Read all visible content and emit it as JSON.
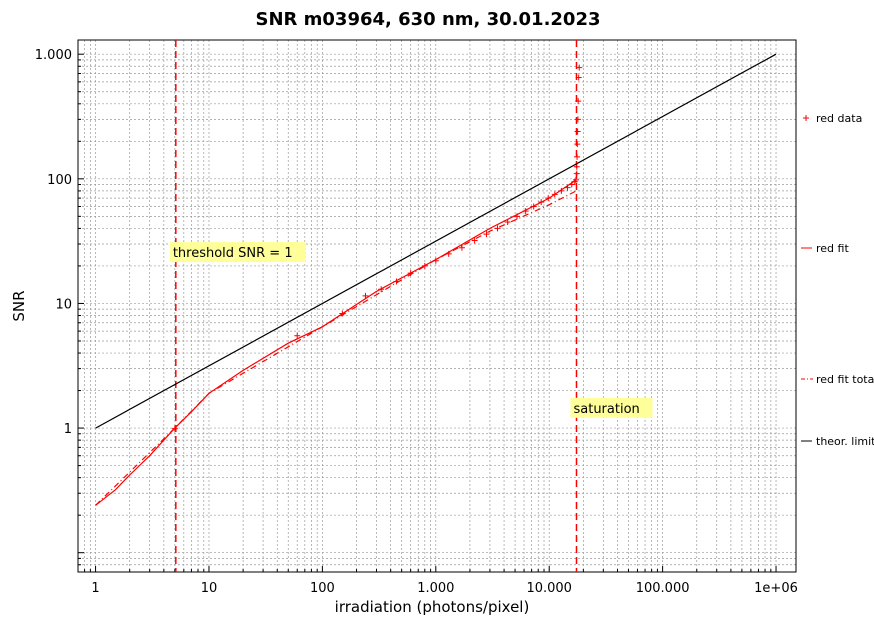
{
  "chart_data": {
    "type": "line",
    "title": "SNR m03964,  630 nm, 30.01.2023",
    "xlabel": "irradiation (photons/pixel)",
    "ylabel": "SNR",
    "x_scale": "log",
    "y_scale": "log",
    "xlim": [
      0.7,
      1500000
    ],
    "ylim": [
      0.07,
      1300
    ],
    "grid": true,
    "legend_position": "right",
    "x_ticks": [
      {
        "value": 1,
        "label": "1"
      },
      {
        "value": 10,
        "label": "10"
      },
      {
        "value": 100,
        "label": "100"
      },
      {
        "value": 1000,
        "label": "1.000"
      },
      {
        "value": 10000,
        "label": "10.000"
      },
      {
        "value": 100000,
        "label": "100.000"
      },
      {
        "value": 1000000,
        "label": "1e+06"
      }
    ],
    "y_ticks": [
      {
        "value": 1,
        "label": "1"
      },
      {
        "value": 10,
        "label": "10"
      },
      {
        "value": 100,
        "label": "100"
      },
      {
        "value": 1000,
        "label": "1.000"
      }
    ],
    "series": [
      {
        "name": "red data",
        "style": "markers",
        "color": "#ff0000",
        "points": [
          [
            5,
            0.99
          ],
          [
            60,
            5.5
          ],
          [
            150,
            8.3
          ],
          [
            240,
            11.5
          ],
          [
            330,
            13
          ],
          [
            450,
            15
          ],
          [
            600,
            17.5
          ],
          [
            800,
            20
          ],
          [
            1000,
            22
          ],
          [
            1300,
            25
          ],
          [
            1700,
            28
          ],
          [
            2200,
            32
          ],
          [
            2800,
            36
          ],
          [
            3500,
            40
          ],
          [
            4300,
            45
          ],
          [
            5200,
            50
          ],
          [
            6200,
            55
          ],
          [
            7300,
            60
          ],
          [
            8500,
            65
          ],
          [
            9800,
            70
          ],
          [
            11200,
            75
          ],
          [
            12800,
            80
          ],
          [
            14500,
            85
          ],
          [
            15800,
            90
          ],
          [
            16800,
            95
          ],
          [
            17200,
            98
          ],
          [
            17500,
            110
          ],
          [
            17500,
            125
          ],
          [
            17600,
            150
          ],
          [
            17700,
            190
          ],
          [
            17800,
            240
          ],
          [
            17900,
            300
          ],
          [
            18000,
            420
          ],
          [
            18200,
            650
          ],
          [
            18400,
            780
          ]
        ]
      },
      {
        "name": "red fit",
        "style": "line",
        "color": "#ff0000",
        "points": [
          [
            1,
            0.24
          ],
          [
            1.5,
            0.32
          ],
          [
            2,
            0.42
          ],
          [
            3,
            0.6
          ],
          [
            5,
            1.0
          ],
          [
            7,
            1.35
          ],
          [
            10,
            1.9
          ],
          [
            20,
            2.9
          ],
          [
            50,
            4.8
          ],
          [
            100,
            6.5
          ],
          [
            300,
            12.5
          ],
          [
            1000,
            22.5
          ],
          [
            3000,
            40
          ],
          [
            10000,
            70
          ],
          [
            17300,
            98
          ]
        ]
      },
      {
        "name": "red fit total",
        "style": "dash-dot",
        "color": "#ff0000",
        "points": [
          [
            1,
            0.24
          ],
          [
            5,
            1.0
          ],
          [
            10,
            1.9
          ],
          [
            100,
            6.5
          ],
          [
            1000,
            22.5
          ],
          [
            3000,
            38
          ],
          [
            10000,
            62
          ],
          [
            17300,
            80
          ]
        ]
      },
      {
        "name": "theor. limit",
        "style": "line",
        "color": "#000000",
        "points": [
          [
            1,
            1
          ],
          [
            1000000,
            1000
          ]
        ]
      }
    ],
    "vertical_lines": [
      {
        "x": 5.1,
        "color": "#ff0000",
        "style": "dashed",
        "annotation": "threshold SNR = 1",
        "annotation_y": 24
      },
      {
        "x": 17400,
        "color": "#ff0000",
        "style": "dashed",
        "annotation": "saturation",
        "annotation_y": 1.35
      }
    ],
    "legend": [
      {
        "label": "red data",
        "color": "#ff0000",
        "marker": "+"
      },
      {
        "label": "red fit",
        "color": "#ff0000",
        "marker": "line"
      },
      {
        "label": "red fit tota",
        "color": "#ff0000",
        "marker": "dash-dot"
      },
      {
        "label": "theor. limit",
        "color": "#000000",
        "marker": "line"
      }
    ],
    "annotation_bg": "#ffff99"
  }
}
